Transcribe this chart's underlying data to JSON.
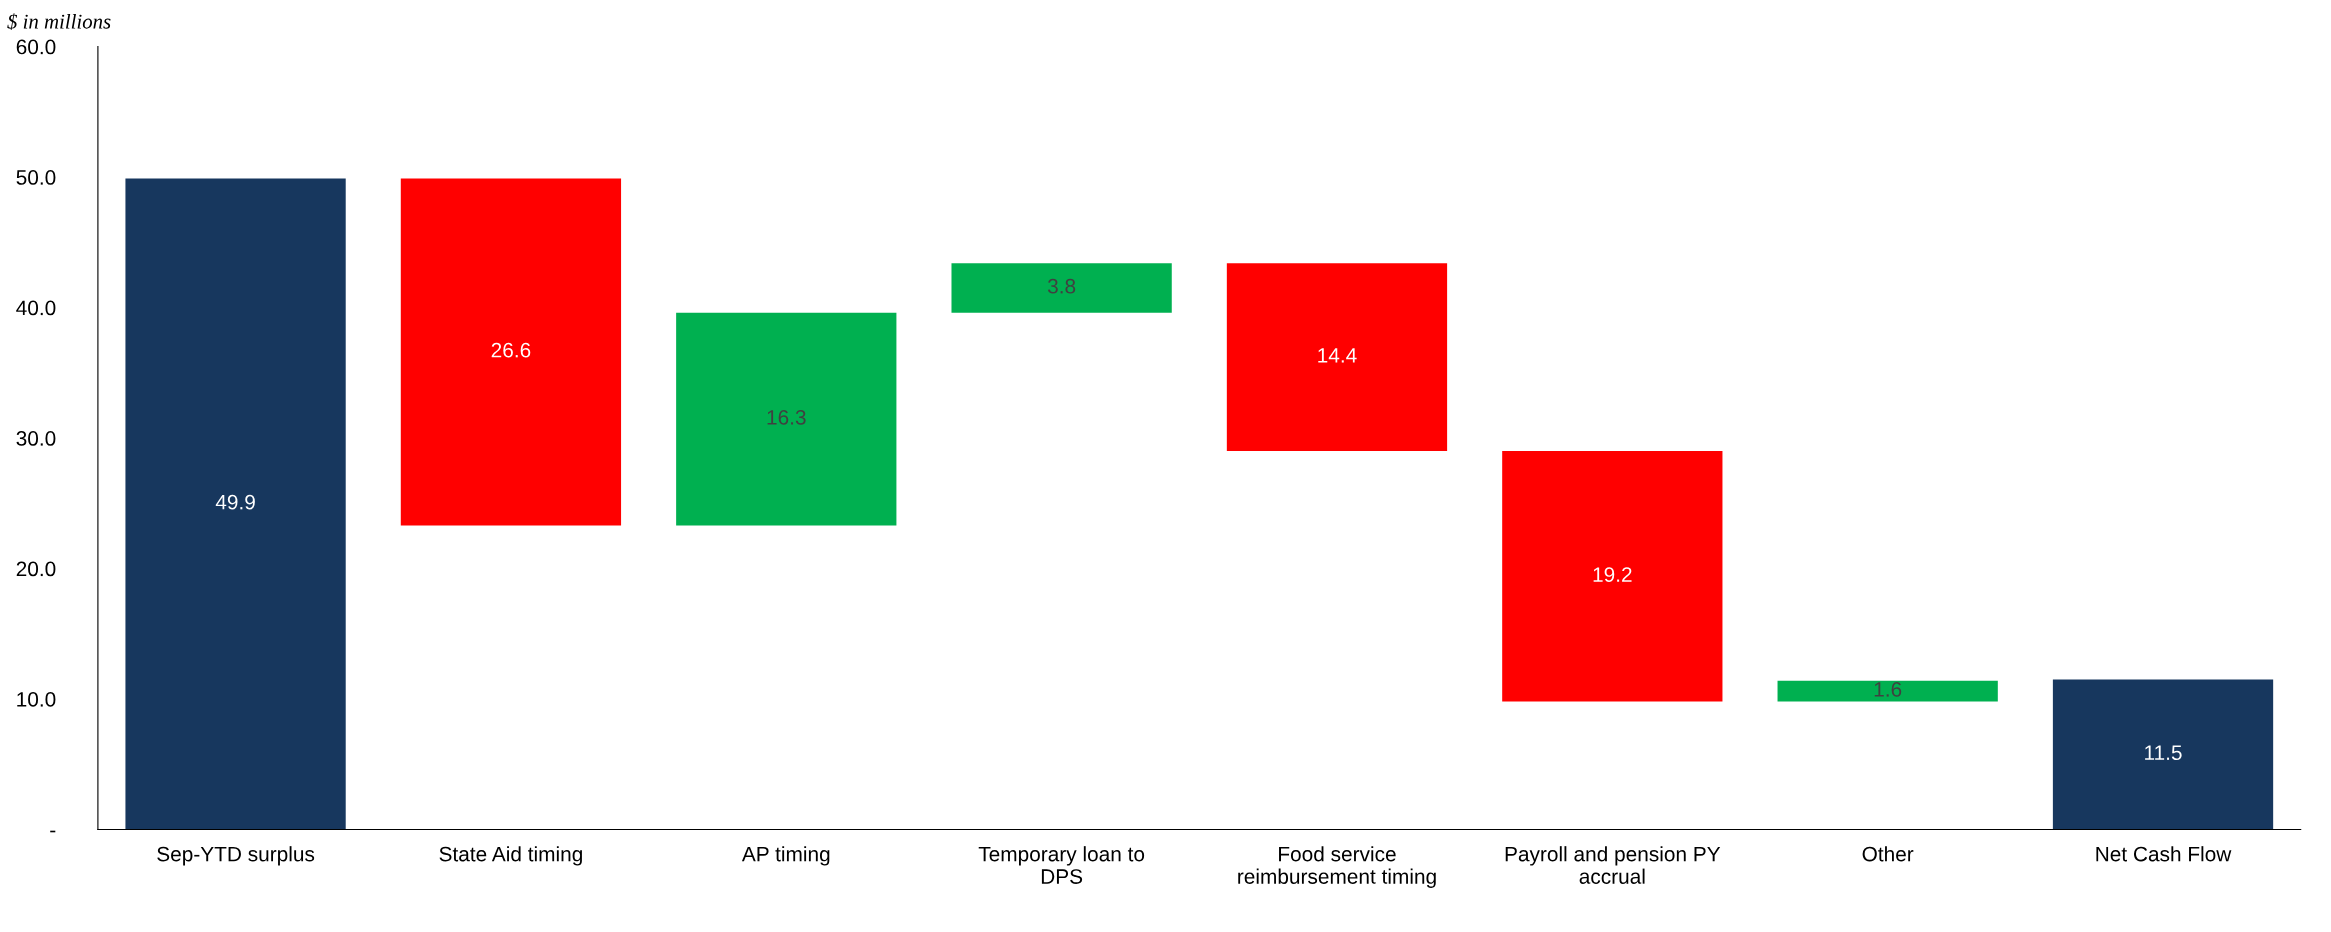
{
  "chart_data": {
    "type": "bar",
    "ylabel": "$ in millions",
    "categories": [
      "Sep-YTD surplus",
      "State Aid timing",
      "AP timing",
      "Temporary loan to\nDPS",
      "Food service\nreimbursement timing",
      "Payroll and pension PY\naccrual",
      "Other",
      "Net Cash Flow"
    ],
    "values": [
      49.9,
      -26.6,
      16.3,
      3.8,
      -14.4,
      -19.2,
      1.6,
      11.5
    ],
    "base": [
      0,
      49.9,
      23.3,
      39.6,
      43.4,
      29.0,
      9.8,
      0
    ],
    "colors": [
      "#17375e",
      "#ff0000",
      "#00b050",
      "#00b050",
      "#ff0000",
      "#ff0000",
      "#00b050",
      "#17375e"
    ],
    "value_labels": [
      "49.9",
      "26.6",
      "16.3",
      "3.8",
      "14.4",
      "19.2",
      "1.6",
      "11.5"
    ],
    "ylim": [
      0,
      60
    ],
    "yticks": [
      {
        "value": 0,
        "label": "-"
      },
      {
        "value": 10,
        "label": "10.0"
      },
      {
        "value": 20,
        "label": "20.0"
      },
      {
        "value": 30,
        "label": "30.0"
      },
      {
        "value": 40,
        "label": "40.0"
      },
      {
        "value": 50,
        "label": "50.0"
      },
      {
        "value": 60,
        "label": "60.0"
      }
    ],
    "grid": false,
    "legend": false
  }
}
